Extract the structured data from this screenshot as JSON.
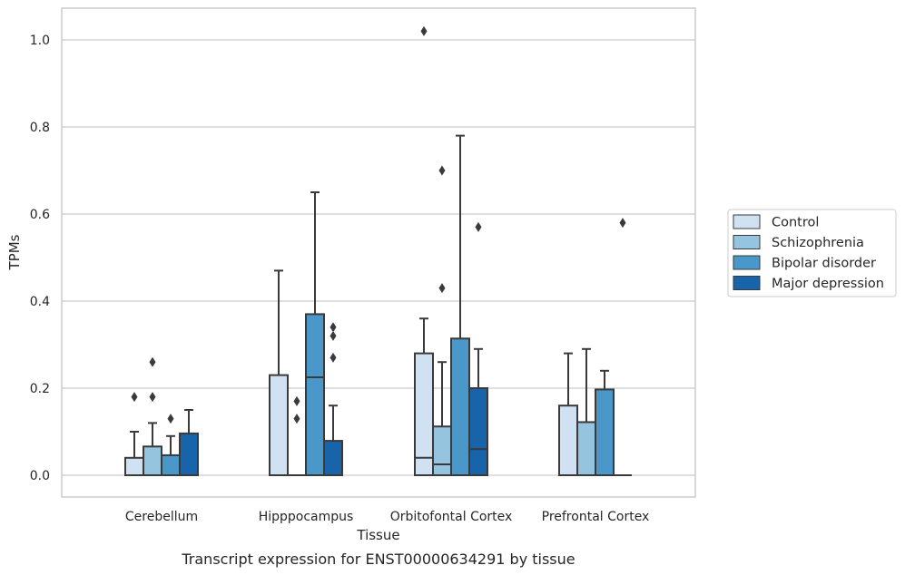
{
  "chart_data": {
    "type": "box",
    "title": "",
    "caption": "Transcript expression for ENST00000634291 by tissue",
    "xlabel": "Tissue",
    "ylabel": "TPMs",
    "ylim": [
      -0.05,
      1.07
    ],
    "yticks": [
      0.0,
      0.2,
      0.4,
      0.6,
      0.8,
      1.0
    ],
    "ytick_labels": [
      "0.0",
      "0.2",
      "0.4",
      "0.6",
      "0.8",
      "1.0"
    ],
    "grid": "horizontal",
    "legend_position": "right",
    "categories": [
      "Cerebellum",
      "Hipppocampus",
      "Orbitofontal Cortex",
      "Prefrontal Cortex"
    ],
    "series": [
      {
        "name": "Control",
        "color": "#d0e1f2",
        "boxes": [
          {
            "q1": 0.0,
            "median": 0.0,
            "q3": 0.04,
            "whisker_low": 0.0,
            "whisker_high": 0.1,
            "outliers": [
              0.18
            ]
          },
          {
            "q1": 0.0,
            "median": 0.0,
            "q3": 0.23,
            "whisker_low": 0.0,
            "whisker_high": 0.47,
            "outliers": []
          },
          {
            "q1": 0.0,
            "median": 0.04,
            "q3": 0.28,
            "whisker_low": 0.0,
            "whisker_high": 0.36,
            "outliers": [
              1.02
            ]
          },
          {
            "q1": 0.0,
            "median": 0.0,
            "q3": 0.16,
            "whisker_low": 0.0,
            "whisker_high": 0.28,
            "outliers": []
          }
        ]
      },
      {
        "name": "Schizophrenia",
        "color": "#94c4df",
        "boxes": [
          {
            "q1": 0.0,
            "median": 0.0,
            "q3": 0.066,
            "whisker_low": 0.0,
            "whisker_high": 0.12,
            "outliers": [
              0.18,
              0.26
            ]
          },
          {
            "q1": 0.0,
            "median": 0.0,
            "q3": 0.0,
            "whisker_low": 0.0,
            "whisker_high": 0.0,
            "outliers": [
              0.13,
              0.17
            ]
          },
          {
            "q1": 0.0,
            "median": 0.025,
            "q3": 0.112,
            "whisker_low": 0.0,
            "whisker_high": 0.26,
            "outliers": [
              0.43,
              0.7
            ]
          },
          {
            "q1": 0.0,
            "median": 0.0,
            "q3": 0.122,
            "whisker_low": 0.0,
            "whisker_high": 0.29,
            "outliers": []
          }
        ]
      },
      {
        "name": "Bipolar disorder",
        "color": "#4a98c9",
        "boxes": [
          {
            "q1": 0.0,
            "median": 0.0,
            "q3": 0.046,
            "whisker_low": 0.0,
            "whisker_high": 0.09,
            "outliers": [
              0.13
            ]
          },
          {
            "q1": 0.0,
            "median": 0.225,
            "q3": 0.37,
            "whisker_low": 0.0,
            "whisker_high": 0.65,
            "outliers": []
          },
          {
            "q1": 0.0,
            "median": 0.0,
            "q3": 0.314,
            "whisker_low": 0.0,
            "whisker_high": 0.78,
            "outliers": []
          },
          {
            "q1": 0.0,
            "median": 0.0,
            "q3": 0.197,
            "whisker_low": 0.0,
            "whisker_high": 0.24,
            "outliers": []
          }
        ]
      },
      {
        "name": "Major depression",
        "color": "#1764ab",
        "boxes": [
          {
            "q1": 0.0,
            "median": 0.0,
            "q3": 0.096,
            "whisker_low": 0.0,
            "whisker_high": 0.15,
            "outliers": []
          },
          {
            "q1": 0.0,
            "median": 0.0,
            "q3": 0.079,
            "whisker_low": 0.0,
            "whisker_high": 0.16,
            "outliers": [
              0.27,
              0.32,
              0.34
            ]
          },
          {
            "q1": 0.0,
            "median": 0.06,
            "q3": 0.2,
            "whisker_low": 0.0,
            "whisker_high": 0.29,
            "outliers": [
              0.57
            ]
          },
          {
            "q1": 0.0,
            "median": 0.0,
            "q3": 0.0,
            "whisker_low": 0.0,
            "whisker_high": 0.0,
            "outliers": [
              0.58
            ]
          }
        ]
      }
    ]
  }
}
